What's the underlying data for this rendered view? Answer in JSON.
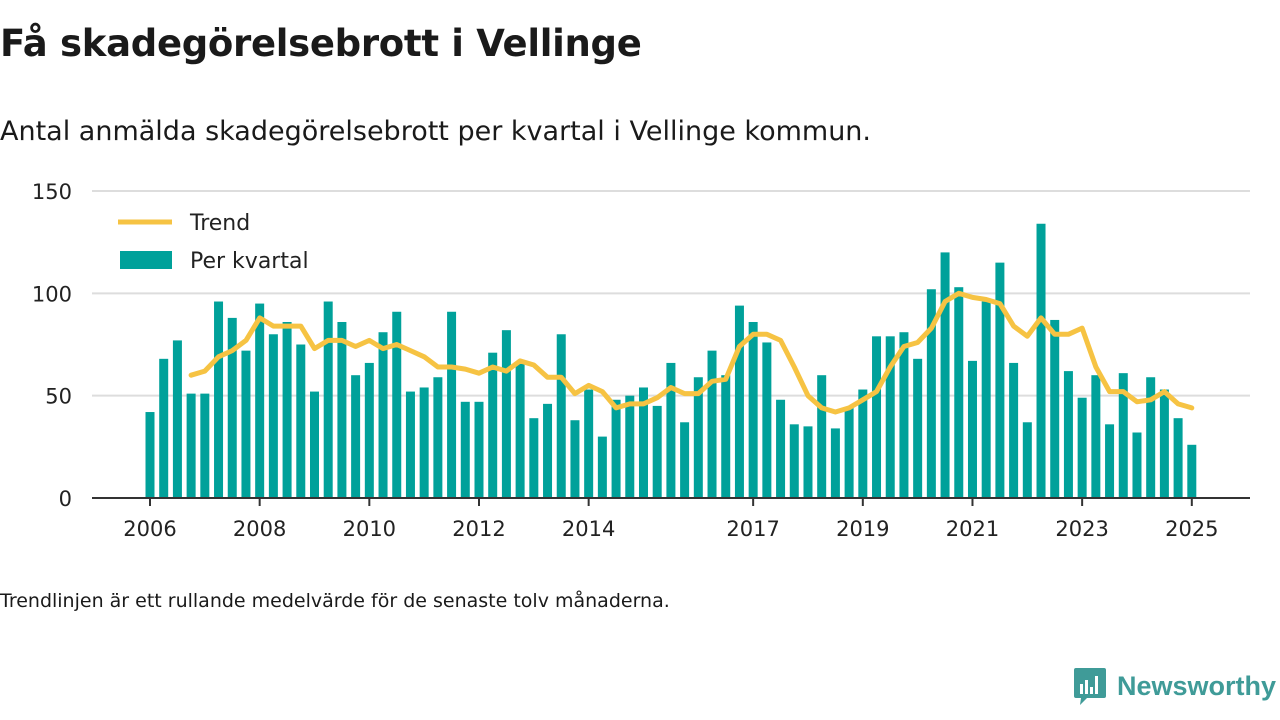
{
  "title": "Få skadegörelsebrott i Vellinge",
  "subtitle": "Antal anmälda skadegörelsebrott per kvartal i Vellinge kommun.",
  "footnote": "Trendlinjen är ett rullande medelvärde för de senaste tolv månaderna.",
  "brand": {
    "name": "Newsworthy",
    "icon": "newsworthy-logo-icon"
  },
  "colors": {
    "bars": "#00a19a",
    "trend": "#f6c343",
    "grid": "#dddddd",
    "axis": "#333333",
    "brand": "#3f9b98"
  },
  "chart_data": {
    "type": "bar",
    "x_start": "2006 Q1",
    "x_labels": [
      "2006",
      "2008",
      "2010",
      "2012",
      "2014",
      "2017",
      "2019",
      "2021",
      "2023",
      "2025"
    ],
    "y_ticks": [
      0,
      50,
      100,
      150
    ],
    "ylim": [
      0,
      150
    ],
    "grid": true,
    "legend_position": "top-left",
    "series": [
      {
        "name": "Per kvartal",
        "kind": "bar",
        "values": [
          42,
          68,
          77,
          51,
          51,
          96,
          88,
          72,
          95,
          80,
          86,
          75,
          52,
          96,
          86,
          60,
          66,
          81,
          91,
          52,
          54,
          59,
          91,
          47,
          47,
          71,
          82,
          66,
          39,
          46,
          80,
          38,
          53,
          30,
          48,
          50,
          54,
          45,
          66,
          37,
          59,
          72,
          60,
          94,
          86,
          76,
          48,
          36,
          35,
          60,
          34,
          44,
          53,
          79,
          79,
          81,
          68,
          102,
          120,
          103,
          67,
          96,
          115,
          66,
          37,
          134,
          87,
          62,
          49,
          60,
          36,
          61,
          32,
          59,
          53,
          39,
          26
        ]
      },
      {
        "name": "Trend",
        "kind": "line",
        "start_index": 3,
        "values": [
          60,
          62,
          69,
          72,
          77,
          88,
          84,
          84,
          84,
          73,
          77,
          77,
          74,
          77,
          73,
          75,
          72,
          69,
          64,
          64,
          63,
          61,
          64,
          62,
          67,
          65,
          59,
          59,
          51,
          55,
          52,
          44,
          46,
          46,
          49,
          54,
          51,
          51,
          57,
          58,
          74,
          80,
          80,
          77,
          64,
          50,
          44,
          42,
          44,
          48,
          52,
          64,
          74,
          76,
          83,
          96,
          100,
          98,
          97,
          95,
          84,
          79,
          88,
          80,
          80,
          83,
          64,
          52,
          52,
          47,
          48,
          52,
          46,
          44
        ]
      }
    ]
  }
}
